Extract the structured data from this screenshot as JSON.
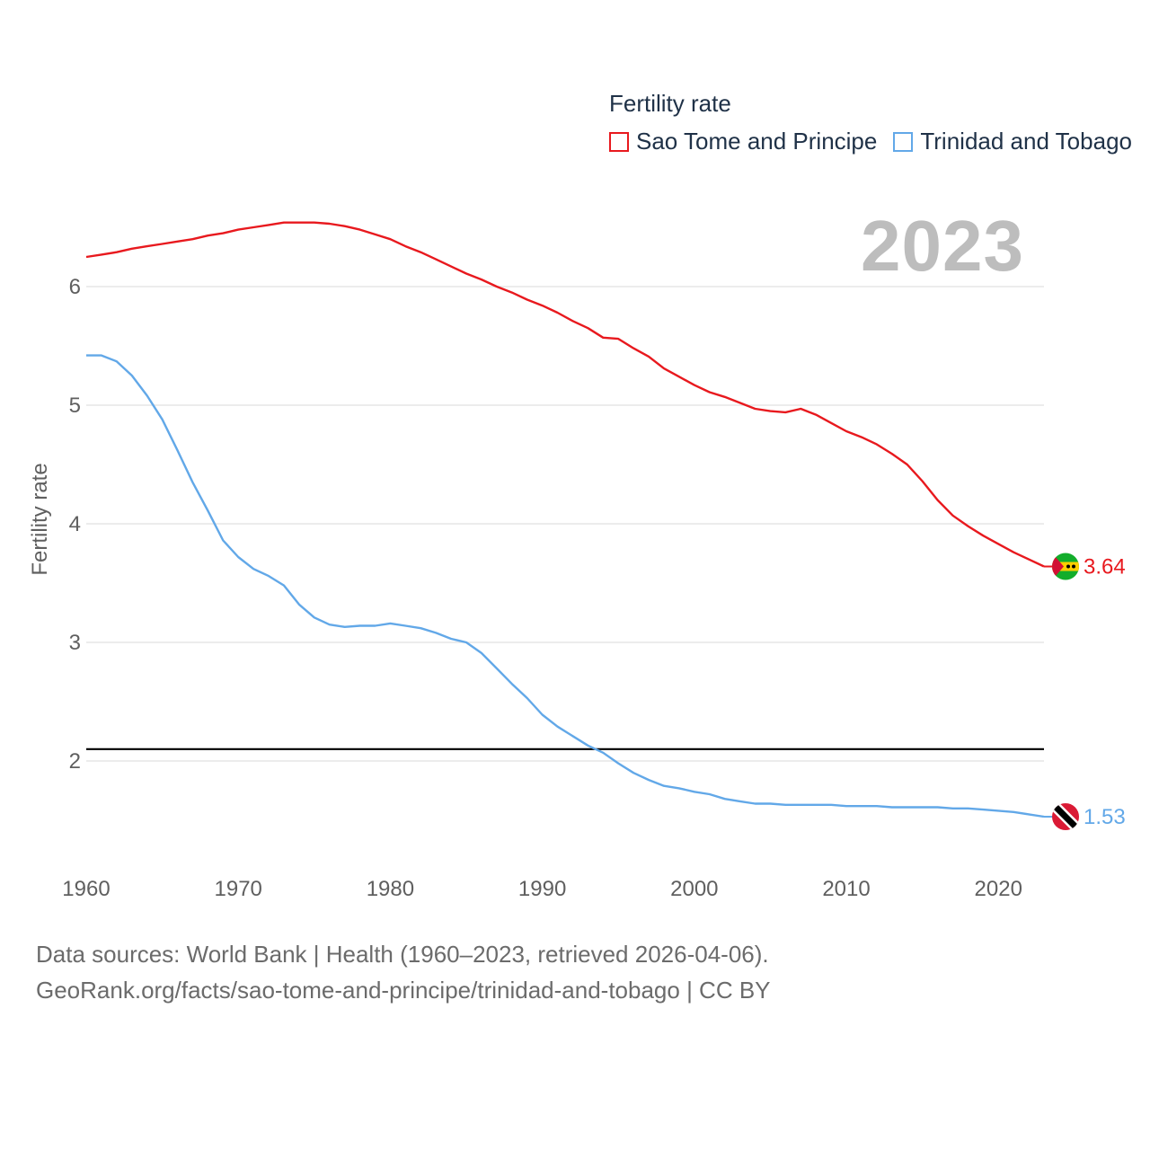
{
  "legend": {
    "title": "Fertility rate",
    "items": [
      {
        "label": "Sao Tome and Principe",
        "color": "#e8191e"
      },
      {
        "label": "Trinidad and Tobago",
        "color": "#62a8e8"
      }
    ]
  },
  "year_label": "2023",
  "footer": {
    "line1": "Data sources: World Bank | Health (1960–2023, retrieved 2026-04-06).",
    "line2": "GeoRank.org/facts/sao-tome-and-principe/trinidad-and-tobago | CC BY"
  },
  "chart_data": {
    "type": "line",
    "title": "Fertility rate",
    "xlabel": "",
    "ylabel": "Fertility rate",
    "xlim": [
      1960,
      2023
    ],
    "ylim": [
      1.3,
      6.6
    ],
    "xticks": [
      1960,
      1970,
      1980,
      1990,
      2000,
      2010,
      2020
    ],
    "yticks": [
      2,
      3,
      4,
      5,
      6
    ],
    "grid": true,
    "reference_line": {
      "y": 2.1,
      "color": "#000000"
    },
    "series": [
      {
        "name": "Sao Tome and Principe",
        "color": "#e8191e",
        "end_label": "3.64",
        "x": [
          1960,
          1961,
          1962,
          1963,
          1964,
          1965,
          1966,
          1967,
          1968,
          1969,
          1970,
          1971,
          1972,
          1973,
          1974,
          1975,
          1976,
          1977,
          1978,
          1979,
          1980,
          1981,
          1982,
          1983,
          1984,
          1985,
          1986,
          1987,
          1988,
          1989,
          1990,
          1991,
          1992,
          1993,
          1994,
          1995,
          1996,
          1997,
          1998,
          1999,
          2000,
          2001,
          2002,
          2003,
          2004,
          2005,
          2006,
          2007,
          2008,
          2009,
          2010,
          2011,
          2012,
          2013,
          2014,
          2015,
          2016,
          2017,
          2018,
          2019,
          2020,
          2021,
          2022,
          2023
        ],
        "values": [
          6.25,
          6.27,
          6.29,
          6.32,
          6.34,
          6.36,
          6.38,
          6.4,
          6.43,
          6.45,
          6.48,
          6.5,
          6.52,
          6.54,
          6.54,
          6.54,
          6.53,
          6.51,
          6.48,
          6.44,
          6.4,
          6.34,
          6.29,
          6.23,
          6.17,
          6.11,
          6.06,
          6.0,
          5.95,
          5.89,
          5.84,
          5.78,
          5.71,
          5.65,
          5.57,
          5.56,
          5.48,
          5.41,
          5.31,
          5.24,
          5.17,
          5.11,
          5.07,
          5.02,
          4.97,
          4.95,
          4.94,
          4.97,
          4.92,
          4.85,
          4.78,
          4.73,
          4.67,
          4.59,
          4.5,
          4.36,
          4.2,
          4.07,
          3.98,
          3.9,
          3.83,
          3.76,
          3.7,
          3.64
        ]
      },
      {
        "name": "Trinidad and Tobago",
        "color": "#62a8e8",
        "end_label": "1.53",
        "x": [
          1960,
          1961,
          1962,
          1963,
          1964,
          1965,
          1966,
          1967,
          1968,
          1969,
          1970,
          1971,
          1972,
          1973,
          1974,
          1975,
          1976,
          1977,
          1978,
          1979,
          1980,
          1981,
          1982,
          1983,
          1984,
          1985,
          1986,
          1987,
          1988,
          1989,
          1990,
          1991,
          1992,
          1993,
          1994,
          1995,
          1996,
          1997,
          1998,
          1999,
          2000,
          2001,
          2002,
          2003,
          2004,
          2005,
          2006,
          2007,
          2008,
          2009,
          2010,
          2011,
          2012,
          2013,
          2014,
          2015,
          2016,
          2017,
          2018,
          2019,
          2020,
          2021,
          2022,
          2023
        ],
        "values": [
          5.42,
          5.42,
          5.37,
          5.25,
          5.08,
          4.88,
          4.62,
          4.35,
          4.11,
          3.86,
          3.72,
          3.62,
          3.56,
          3.48,
          3.32,
          3.21,
          3.15,
          3.13,
          3.14,
          3.14,
          3.16,
          3.14,
          3.12,
          3.08,
          3.03,
          3.0,
          2.91,
          2.78,
          2.65,
          2.53,
          2.39,
          2.29,
          2.21,
          2.13,
          2.07,
          1.98,
          1.9,
          1.84,
          1.79,
          1.77,
          1.74,
          1.72,
          1.68,
          1.66,
          1.64,
          1.64,
          1.63,
          1.63,
          1.63,
          1.63,
          1.62,
          1.62,
          1.62,
          1.61,
          1.61,
          1.61,
          1.61,
          1.6,
          1.6,
          1.59,
          1.58,
          1.57,
          1.55,
          1.53
        ]
      }
    ]
  }
}
